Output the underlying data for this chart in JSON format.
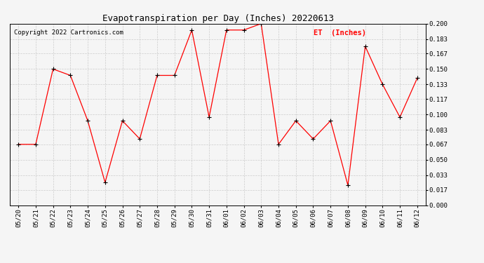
{
  "title": "Evapotranspiration per Day (Inches) 20220613",
  "copyright": "Copyright 2022 Cartronics.com",
  "legend_label": "ET  (Inches)",
  "dates": [
    "05/20",
    "05/21",
    "05/22",
    "05/23",
    "05/24",
    "05/25",
    "05/26",
    "05/27",
    "05/28",
    "05/29",
    "05/30",
    "05/31",
    "06/01",
    "06/02",
    "06/03",
    "06/04",
    "06/05",
    "06/06",
    "06/07",
    "06/08",
    "06/09",
    "06/10",
    "06/11",
    "06/12"
  ],
  "values": [
    0.067,
    0.067,
    0.15,
    0.143,
    0.093,
    0.025,
    0.093,
    0.073,
    0.143,
    0.143,
    0.193,
    0.097,
    0.193,
    0.193,
    0.2,
    0.067,
    0.093,
    0.073,
    0.093,
    0.022,
    0.175,
    0.133,
    0.097,
    0.14
  ],
  "ylim": [
    0.0,
    0.2
  ],
  "yticks": [
    0.0,
    0.017,
    0.033,
    0.05,
    0.067,
    0.083,
    0.1,
    0.117,
    0.133,
    0.15,
    0.167,
    0.183,
    0.2
  ],
  "line_color": "red",
  "marker_color": "black",
  "grid_color": "#cccccc",
  "bg_color": "#f5f5f5",
  "title_fontsize": 9,
  "copyright_fontsize": 6.5,
  "legend_color": "red",
  "tick_fontsize": 6.5,
  "legend_fontsize": 7.5
}
